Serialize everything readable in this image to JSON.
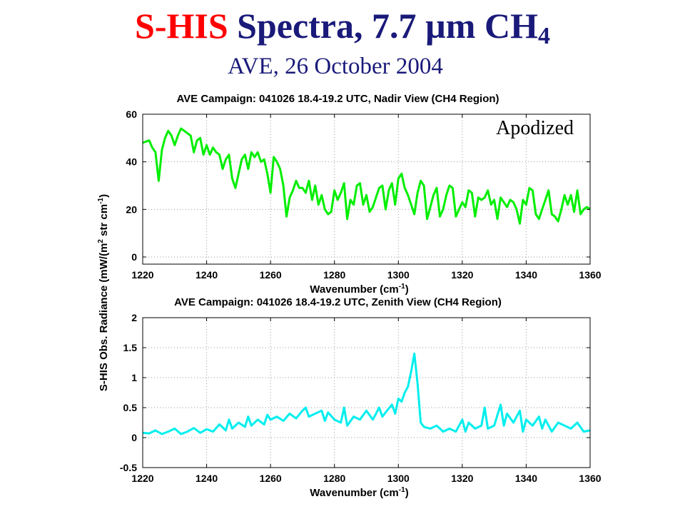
{
  "header": {
    "title_red": "S-HIS",
    "title_blue": "Spectra, 7.7",
    "title_unit": "µm CH",
    "title_sub": "4",
    "subtitle": "AVE, 26 October 2004"
  },
  "shared_ylabel": "S-HIS Obs. Radiance (mW/(m",
  "shared_ylabel_sup2": "2",
  "shared_ylabel_mid": " str cm",
  "shared_ylabel_sup1": "-1",
  "shared_ylabel_end": ")",
  "colors": {
    "nadir": "#00ee00",
    "zenith": "#00eeee",
    "title_red": "#ff0000",
    "title_blue": "#1a1a7a"
  },
  "chart_data": [
    {
      "type": "line",
      "title": "AVE Campaign: 041026 18.4-19.2 UTC, Nadir View (CH4 Region)",
      "xlabel": "Wavenumber (cm",
      "xlabel_sup": "-1",
      "xlabel_end": ")",
      "xlim": [
        1220,
        1360
      ],
      "ylim": [
        -3,
        60
      ],
      "xticks": [
        1220,
        1240,
        1260,
        1280,
        1300,
        1320,
        1340,
        1360
      ],
      "yticks": [
        0,
        20,
        40,
        60
      ],
      "grid": true,
      "annotation": "Apodized",
      "series": [
        {
          "color": "#00ee00",
          "x": [
            1220,
            1222,
            1223,
            1224,
            1225,
            1226,
            1227,
            1228,
            1229,
            1230,
            1231,
            1232,
            1233,
            1234,
            1235,
            1236,
            1237,
            1238,
            1239,
            1240,
            1241,
            1242,
            1243,
            1244,
            1245,
            1246,
            1247,
            1248,
            1249,
            1250,
            1251,
            1252,
            1253,
            1254,
            1255,
            1256,
            1257,
            1258,
            1259,
            1260,
            1261,
            1262,
            1263,
            1264,
            1265,
            1266,
            1267,
            1268,
            1269,
            1270,
            1271,
            1272,
            1273,
            1274,
            1275,
            1276,
            1277,
            1278,
            1279,
            1280,
            1281,
            1282,
            1283,
            1284,
            1285,
            1286,
            1287,
            1288,
            1289,
            1290,
            1291,
            1292,
            1293,
            1294,
            1295,
            1296,
            1297,
            1298,
            1299,
            1300,
            1301,
            1302,
            1303,
            1304,
            1305,
            1306,
            1307,
            1308,
            1309,
            1310,
            1311,
            1312,
            1313,
            1314,
            1315,
            1316,
            1317,
            1318,
            1319,
            1320,
            1321,
            1322,
            1323,
            1324,
            1325,
            1326,
            1327,
            1328,
            1329,
            1330,
            1331,
            1332,
            1333,
            1334,
            1335,
            1336,
            1337,
            1338,
            1339,
            1340,
            1341,
            1342,
            1343,
            1344,
            1345,
            1346,
            1347,
            1348,
            1349,
            1350,
            1351,
            1352,
            1353,
            1354,
            1355,
            1356,
            1357,
            1358,
            1359,
            1360
          ],
          "y": [
            48,
            49,
            46,
            44,
            32,
            45,
            50,
            53,
            51,
            47,
            51,
            54,
            53,
            52,
            51,
            44,
            49,
            50,
            43,
            47,
            43,
            46,
            44,
            43,
            37,
            41,
            43,
            33,
            29,
            35,
            41,
            43,
            37,
            44,
            42,
            44,
            40,
            41,
            35,
            27,
            42,
            40,
            37,
            30,
            17,
            25,
            28,
            32,
            29,
            29,
            27,
            32,
            24,
            30,
            22,
            26,
            20,
            18,
            19,
            28,
            24,
            27,
            31,
            16,
            24,
            22,
            30,
            31,
            22,
            26,
            19,
            21,
            25,
            29,
            30,
            20,
            28,
            31,
            22,
            33,
            35,
            29,
            26,
            22,
            18,
            27,
            32,
            30,
            16,
            21,
            26,
            29,
            17,
            20,
            26,
            30,
            29,
            17,
            20,
            23,
            21,
            28,
            27,
            17,
            25,
            24,
            25,
            28,
            22,
            24,
            16,
            25,
            23,
            21,
            24,
            23,
            20,
            14,
            24,
            22,
            29,
            28,
            18,
            16,
            20,
            24,
            28,
            18,
            17,
            15,
            20,
            26,
            22,
            26,
            19,
            28,
            18,
            20,
            21,
            20
          ],
          "values_note": ""
        }
      ]
    },
    {
      "type": "line",
      "title": "AVE Campaign: 041026 18.4-19.2 UTC, Zenith View (CH4 Region)",
      "xlabel": "Wavenumber (cm",
      "xlabel_sup": "-1",
      "xlabel_end": ")",
      "xlim": [
        1220,
        1360
      ],
      "ylim": [
        -0.5,
        2
      ],
      "xticks": [
        1220,
        1240,
        1260,
        1280,
        1300,
        1320,
        1340,
        1360
      ],
      "yticks": [
        -0.5,
        0,
        0.5,
        1,
        1.5,
        2
      ],
      "grid": true,
      "series": [
        {
          "color": "#00eeee",
          "x": [
            1220,
            1222,
            1224,
            1226,
            1228,
            1230,
            1232,
            1234,
            1236,
            1238,
            1240,
            1242,
            1244,
            1246,
            1247,
            1248,
            1250,
            1252,
            1253,
            1254,
            1256,
            1258,
            1259,
            1260,
            1262,
            1264,
            1266,
            1268,
            1270,
            1271,
            1272,
            1274,
            1276,
            1277,
            1278,
            1280,
            1282,
            1283,
            1284,
            1286,
            1288,
            1290,
            1292,
            1294,
            1295,
            1296,
            1298,
            1299,
            1300,
            1301,
            1302,
            1303,
            1304,
            1305,
            1306,
            1307,
            1308,
            1310,
            1312,
            1314,
            1316,
            1318,
            1320,
            1321,
            1322,
            1324,
            1326,
            1327,
            1328,
            1330,
            1332,
            1333,
            1334,
            1336,
            1338,
            1339,
            1340,
            1342,
            1344,
            1345,
            1346,
            1348,
            1350,
            1352,
            1354,
            1356,
            1358,
            1360
          ],
          "y": [
            0.08,
            0.07,
            0.12,
            0.06,
            0.1,
            0.15,
            0.06,
            0.1,
            0.16,
            0.08,
            0.14,
            0.1,
            0.22,
            0.12,
            0.3,
            0.15,
            0.25,
            0.18,
            0.35,
            0.2,
            0.3,
            0.22,
            0.38,
            0.3,
            0.35,
            0.28,
            0.4,
            0.32,
            0.45,
            0.5,
            0.35,
            0.4,
            0.45,
            0.28,
            0.42,
            0.3,
            0.25,
            0.5,
            0.2,
            0.35,
            0.3,
            0.45,
            0.3,
            0.5,
            0.35,
            0.42,
            0.55,
            0.4,
            0.65,
            0.6,
            0.75,
            0.85,
            1.1,
            1.4,
            0.9,
            0.25,
            0.18,
            0.15,
            0.2,
            0.1,
            0.15,
            0.1,
            0.3,
            0.1,
            0.25,
            0.15,
            0.2,
            0.5,
            0.15,
            0.2,
            0.55,
            0.2,
            0.4,
            0.25,
            0.45,
            0.1,
            0.3,
            0.2,
            0.35,
            0.15,
            0.3,
            0.1,
            0.25,
            0.2,
            0.15,
            0.25,
            0.1,
            0.12
          ],
          "values_note": ""
        }
      ]
    }
  ]
}
